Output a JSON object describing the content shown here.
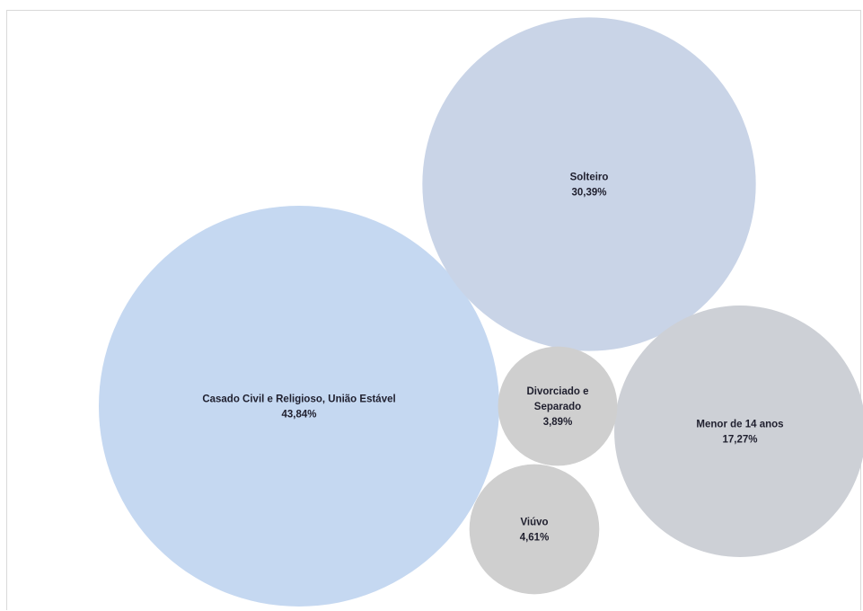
{
  "chart_data": {
    "type": "bubble",
    "title": "",
    "legend": "none",
    "series": [
      {
        "label_lines": [
          "Casado Civil e Religioso, União Estável"
        ],
        "value": 43.84,
        "value_label": "43,84%",
        "color": "#c5d8f1"
      },
      {
        "label_lines": [
          "Solteiro"
        ],
        "value": 30.39,
        "value_label": "30,39%",
        "color": "#c9d4e7"
      },
      {
        "label_lines": [
          "Menor de 14 anos"
        ],
        "value": 17.27,
        "value_label": "17,27%",
        "color": "#cdd0d6"
      },
      {
        "label_lines": [
          "Divorciado e",
          "Separado"
        ],
        "value": 3.89,
        "value_label": "3,89%",
        "color": "#cfcfcf"
      },
      {
        "label_lines": [
          "Viúvo"
        ],
        "value": 4.61,
        "value_label": "4,61%",
        "color": "#cfcfcf"
      }
    ]
  }
}
